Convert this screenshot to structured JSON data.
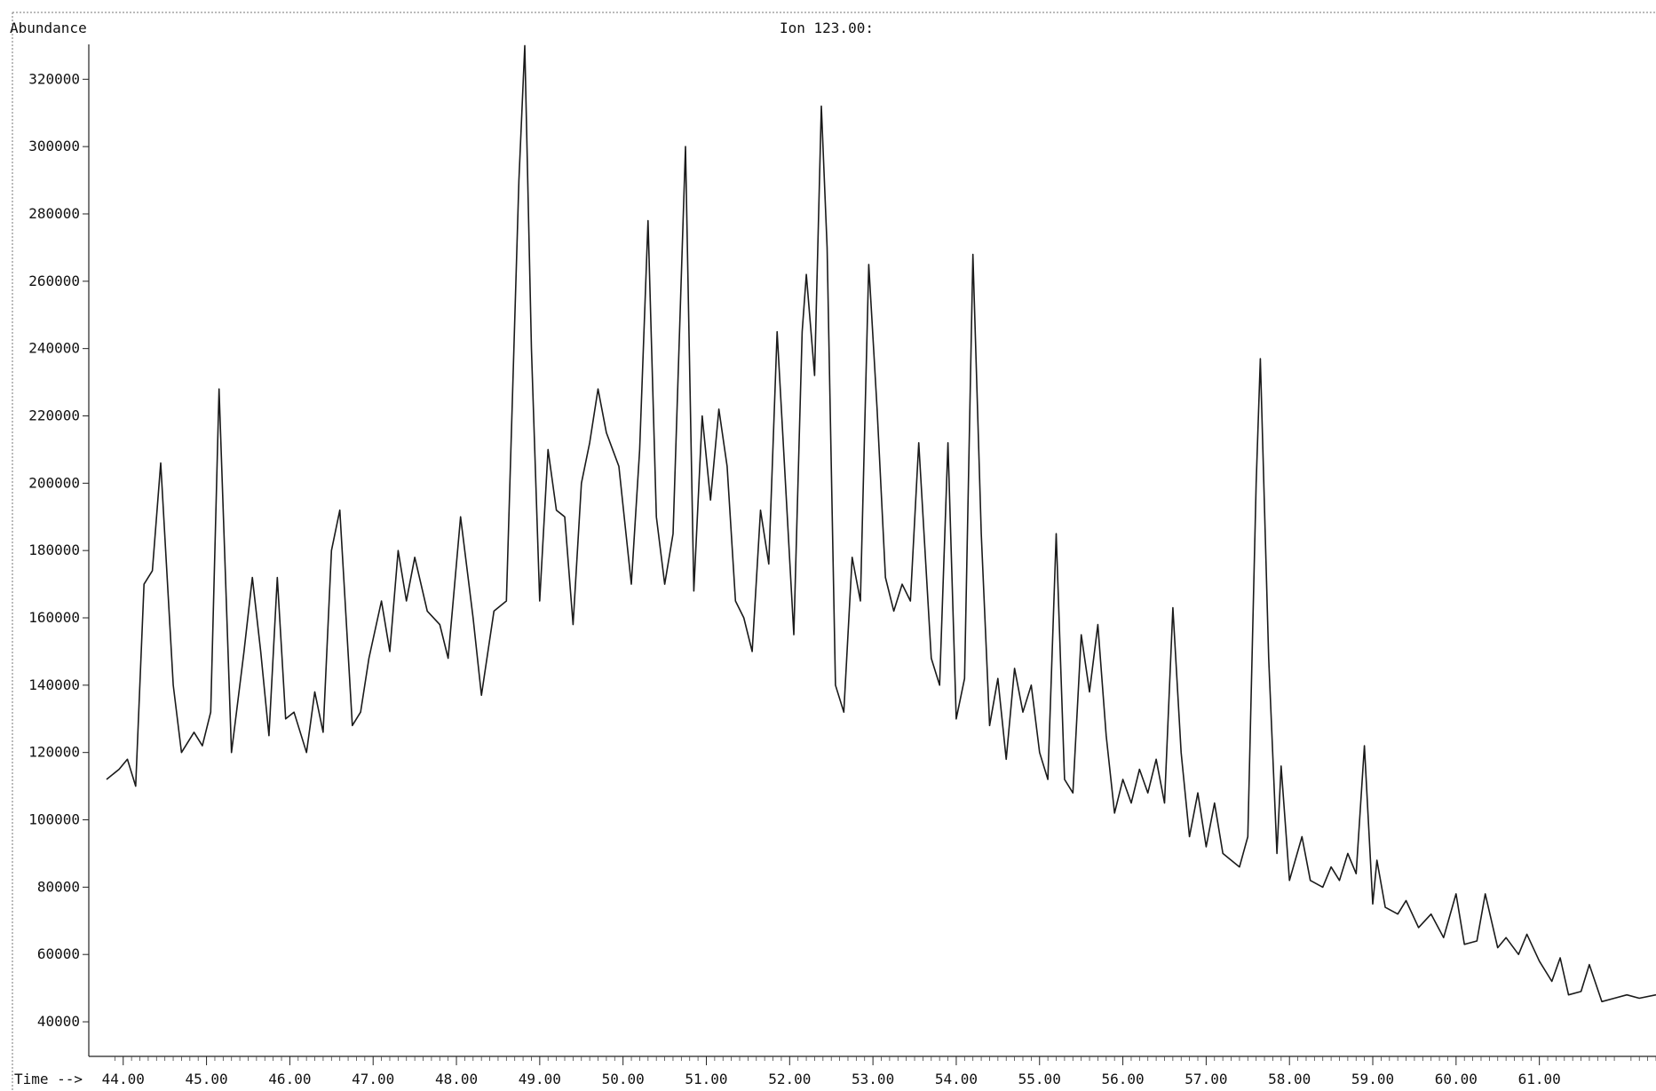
{
  "chart_data": {
    "type": "line",
    "title": "Ion 123.00:",
    "ylabel": "Abundance",
    "xlabel": "Time -->",
    "xlim": [
      43.8,
      62.4
    ],
    "ylim": [
      35000,
      333000
    ],
    "x_ticks": [
      "44.00",
      "45.00",
      "46.00",
      "47.00",
      "48.00",
      "49.00",
      "50.00",
      "51.00",
      "52.00",
      "53.00",
      "54.00",
      "55.00",
      "56.00",
      "57.00",
      "58.00",
      "59.00",
      "60.00",
      "61.00"
    ],
    "y_ticks": [
      "40000",
      "60000",
      "80000",
      "100000",
      "120000",
      "140000",
      "160000",
      "180000",
      "200000",
      "220000",
      "240000",
      "260000",
      "280000",
      "300000",
      "320000"
    ],
    "grid": false,
    "line_color": "#1a1a1a",
    "series": [
      {
        "values": [
          [
            43.8,
            112000
          ],
          [
            43.95,
            115000
          ],
          [
            44.05,
            118000
          ],
          [
            44.15,
            110000
          ],
          [
            44.25,
            170000
          ],
          [
            44.35,
            174000
          ],
          [
            44.45,
            206000
          ],
          [
            44.6,
            140000
          ],
          [
            44.7,
            120000
          ],
          [
            44.85,
            126000
          ],
          [
            44.95,
            122000
          ],
          [
            45.05,
            132000
          ],
          [
            45.15,
            228000
          ],
          [
            45.3,
            120000
          ],
          [
            45.45,
            150000
          ],
          [
            45.55,
            172000
          ],
          [
            45.65,
            150000
          ],
          [
            45.75,
            125000
          ],
          [
            45.85,
            172000
          ],
          [
            45.95,
            130000
          ],
          [
            46.05,
            132000
          ],
          [
            46.2,
            120000
          ],
          [
            46.3,
            138000
          ],
          [
            46.4,
            126000
          ],
          [
            46.5,
            180000
          ],
          [
            46.6,
            192000
          ],
          [
            46.75,
            128000
          ],
          [
            46.85,
            132000
          ],
          [
            46.95,
            148000
          ],
          [
            47.1,
            165000
          ],
          [
            47.2,
            150000
          ],
          [
            47.3,
            180000
          ],
          [
            47.4,
            165000
          ],
          [
            47.5,
            178000
          ],
          [
            47.65,
            162000
          ],
          [
            47.8,
            158000
          ],
          [
            47.9,
            148000
          ],
          [
            48.05,
            190000
          ],
          [
            48.2,
            160000
          ],
          [
            48.3,
            137000
          ],
          [
            48.45,
            162000
          ],
          [
            48.6,
            165000
          ],
          [
            48.75,
            290000
          ],
          [
            48.82,
            330000
          ],
          [
            48.9,
            240000
          ],
          [
            49.0,
            165000
          ],
          [
            49.1,
            210000
          ],
          [
            49.2,
            192000
          ],
          [
            49.3,
            190000
          ],
          [
            49.4,
            158000
          ],
          [
            49.5,
            200000
          ],
          [
            49.6,
            212000
          ],
          [
            49.7,
            228000
          ],
          [
            49.8,
            215000
          ],
          [
            49.95,
            205000
          ],
          [
            50.1,
            170000
          ],
          [
            50.2,
            210000
          ],
          [
            50.3,
            278000
          ],
          [
            50.4,
            190000
          ],
          [
            50.5,
            170000
          ],
          [
            50.6,
            185000
          ],
          [
            50.75,
            300000
          ],
          [
            50.85,
            168000
          ],
          [
            50.95,
            220000
          ],
          [
            51.05,
            195000
          ],
          [
            51.15,
            222000
          ],
          [
            51.25,
            205000
          ],
          [
            51.35,
            165000
          ],
          [
            51.45,
            160000
          ],
          [
            51.55,
            150000
          ],
          [
            51.65,
            192000
          ],
          [
            51.75,
            176000
          ],
          [
            51.85,
            245000
          ],
          [
            51.95,
            200000
          ],
          [
            52.05,
            155000
          ],
          [
            52.15,
            245000
          ],
          [
            52.2,
            262000
          ],
          [
            52.3,
            232000
          ],
          [
            52.38,
            312000
          ],
          [
            52.45,
            270000
          ],
          [
            52.55,
            140000
          ],
          [
            52.65,
            132000
          ],
          [
            52.75,
            178000
          ],
          [
            52.85,
            165000
          ],
          [
            52.95,
            265000
          ],
          [
            53.05,
            222000
          ],
          [
            53.15,
            172000
          ],
          [
            53.25,
            162000
          ],
          [
            53.35,
            170000
          ],
          [
            53.45,
            165000
          ],
          [
            53.55,
            212000
          ],
          [
            53.7,
            148000
          ],
          [
            53.8,
            140000
          ],
          [
            53.9,
            212000
          ],
          [
            54.0,
            130000
          ],
          [
            54.1,
            142000
          ],
          [
            54.2,
            268000
          ],
          [
            54.3,
            185000
          ],
          [
            54.4,
            128000
          ],
          [
            54.5,
            142000
          ],
          [
            54.6,
            118000
          ],
          [
            54.7,
            145000
          ],
          [
            54.8,
            132000
          ],
          [
            54.9,
            140000
          ],
          [
            55.0,
            120000
          ],
          [
            55.1,
            112000
          ],
          [
            55.2,
            185000
          ],
          [
            55.3,
            112000
          ],
          [
            55.4,
            108000
          ],
          [
            55.5,
            155000
          ],
          [
            55.6,
            138000
          ],
          [
            55.7,
            158000
          ],
          [
            55.8,
            125000
          ],
          [
            55.9,
            102000
          ],
          [
            56.0,
            112000
          ],
          [
            56.1,
            105000
          ],
          [
            56.2,
            115000
          ],
          [
            56.3,
            108000
          ],
          [
            56.4,
            118000
          ],
          [
            56.5,
            105000
          ],
          [
            56.6,
            163000
          ],
          [
            56.7,
            120000
          ],
          [
            56.8,
            95000
          ],
          [
            56.9,
            108000
          ],
          [
            57.0,
            92000
          ],
          [
            57.1,
            105000
          ],
          [
            57.2,
            90000
          ],
          [
            57.3,
            88000
          ],
          [
            57.4,
            86000
          ],
          [
            57.5,
            95000
          ],
          [
            57.6,
            200000
          ],
          [
            57.65,
            237000
          ],
          [
            57.75,
            148000
          ],
          [
            57.85,
            90000
          ],
          [
            57.9,
            116000
          ],
          [
            58.0,
            82000
          ],
          [
            58.15,
            95000
          ],
          [
            58.25,
            82000
          ],
          [
            58.4,
            80000
          ],
          [
            58.5,
            86000
          ],
          [
            58.6,
            82000
          ],
          [
            58.7,
            90000
          ],
          [
            58.8,
            84000
          ],
          [
            58.9,
            122000
          ],
          [
            59.0,
            75000
          ],
          [
            59.05,
            88000
          ],
          [
            59.15,
            74000
          ],
          [
            59.3,
            72000
          ],
          [
            59.4,
            76000
          ],
          [
            59.55,
            68000
          ],
          [
            59.7,
            72000
          ],
          [
            59.85,
            65000
          ],
          [
            60.0,
            78000
          ],
          [
            60.1,
            63000
          ],
          [
            60.25,
            64000
          ],
          [
            60.35,
            78000
          ],
          [
            60.5,
            62000
          ],
          [
            60.6,
            65000
          ],
          [
            60.75,
            60000
          ],
          [
            60.85,
            66000
          ],
          [
            61.0,
            58000
          ],
          [
            61.15,
            52000
          ],
          [
            61.25,
            59000
          ],
          [
            61.35,
            48000
          ],
          [
            61.5,
            49000
          ],
          [
            61.6,
            57000
          ],
          [
            61.75,
            46000
          ],
          [
            61.9,
            47000
          ],
          [
            62.05,
            48000
          ],
          [
            62.2,
            47000
          ],
          [
            62.4,
            48000
          ]
        ]
      }
    ]
  }
}
